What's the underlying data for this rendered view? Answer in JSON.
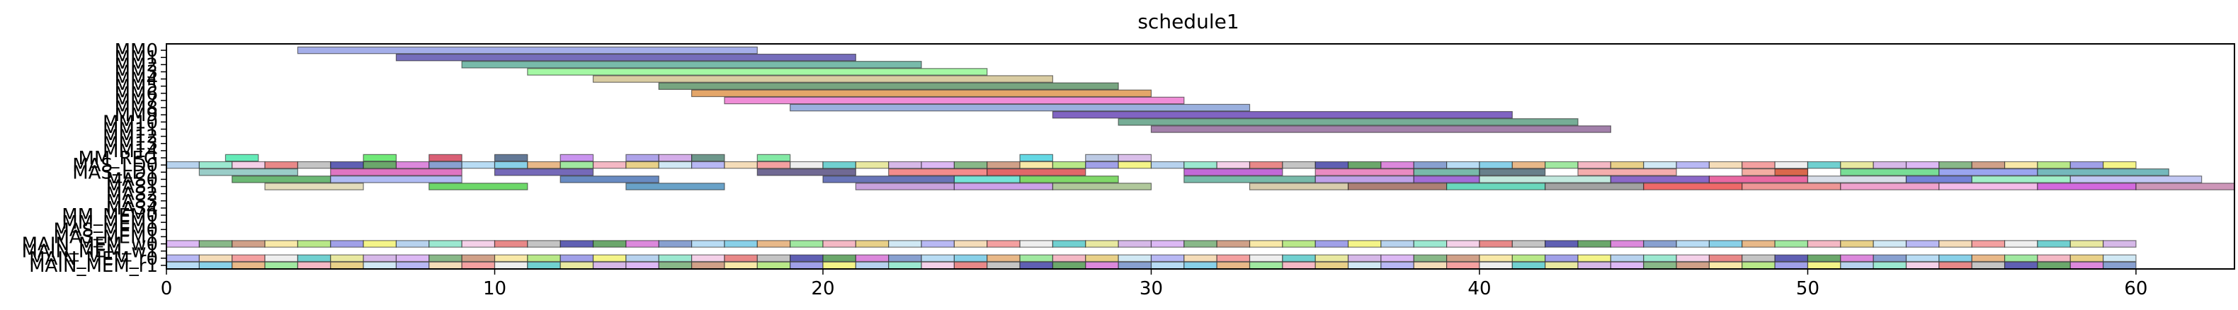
{
  "chart_data": {
    "type": "gantt",
    "title": "schedule1",
    "xlim": [
      0,
      63
    ],
    "xticks": [
      0,
      10,
      20,
      30,
      40,
      50,
      60
    ],
    "ylabels": [
      "MM0",
      "MM1",
      "MM2",
      "MM3",
      "MM4",
      "MM5",
      "MM6",
      "MM7",
      "MM8",
      "MM9",
      "MM10",
      "MM11",
      "MM12",
      "MM13",
      "MM14",
      "MM_REG",
      "MAS_LD0",
      "MAS_LD1",
      "MAS0",
      "MAS1",
      "MAS2",
      "MAS3",
      "MAS4",
      "MM_MEM0",
      "MM_MEM1",
      "MAS_MEM0",
      "MAS_MEM1",
      "MAIN_MEM_w0",
      "MAIN_MEM_w1",
      "MAIN_MEM_r0",
      "MAIN_MEM_r1"
    ],
    "tasks": [
      {
        "row": 0,
        "start": 4,
        "end": 18,
        "color": "#7d8ce0"
      },
      {
        "row": 1,
        "start": 7,
        "end": 21,
        "color": "#3a2f9e"
      },
      {
        "row": 2,
        "start": 9,
        "end": 23,
        "color": "#3f9c86"
      },
      {
        "row": 3,
        "start": 11,
        "end": 25,
        "color": "#7ef57e"
      },
      {
        "row": 4,
        "start": 13,
        "end": 27,
        "color": "#c9b77a"
      },
      {
        "row": 5,
        "start": 15,
        "end": 29,
        "color": "#3d7f4a"
      },
      {
        "row": 6,
        "start": 16,
        "end": 30,
        "color": "#d9802a"
      },
      {
        "row": 7,
        "start": 17,
        "end": 31,
        "color": "#e85cc6"
      },
      {
        "row": 8,
        "start": 19,
        "end": 33,
        "color": "#6f8fd0"
      },
      {
        "row": 9,
        "start": 27,
        "end": 41,
        "color": "#4a22a8"
      },
      {
        "row": 10,
        "start": 29,
        "end": 43,
        "color": "#3c8a6a"
      },
      {
        "row": 11,
        "start": 30,
        "end": 44,
        "color": "#7a4a86"
      },
      {
        "row": 15,
        "start": 1.8,
        "end": 2.8,
        "color": "#22e39a"
      },
      {
        "row": 15,
        "start": 6,
        "end": 7,
        "color": "#33e03f"
      },
      {
        "row": 15,
        "start": 8,
        "end": 9,
        "color": "#c91b3a"
      },
      {
        "row": 15,
        "start": 10,
        "end": 11,
        "color": "#1f3f6a"
      },
      {
        "row": 15,
        "start": 12,
        "end": 13,
        "color": "#b266e8"
      },
      {
        "row": 15,
        "start": 14,
        "end": 15,
        "color": "#8c7ce0"
      },
      {
        "row": 15,
        "start": 15,
        "end": 16,
        "color": "#c28ae0"
      },
      {
        "row": 15,
        "start": 16,
        "end": 17,
        "color": "#2f6b5a"
      },
      {
        "row": 15,
        "start": 18,
        "end": 19,
        "color": "#4ee07f"
      },
      {
        "row": 15,
        "start": 26,
        "end": 27,
        "color": "#22c7d9"
      },
      {
        "row": 15,
        "start": 28,
        "end": 29,
        "color": "#9fb3d9"
      },
      {
        "row": 15,
        "start": 29,
        "end": 30,
        "color": "#c9a2e0"
      },
      {
        "row": 17,
        "start": 1,
        "end": 4,
        "color": "#6fb8b0"
      },
      {
        "row": 17,
        "start": 5,
        "end": 9,
        "color": "#d13aa8"
      },
      {
        "row": 17,
        "start": 10,
        "end": 13,
        "color": "#3a2a9a"
      },
      {
        "row": 17,
        "start": 18,
        "end": 21,
        "color": "#332a66"
      },
      {
        "row": 17,
        "start": 22,
        "end": 25,
        "color": "#f05b5b"
      },
      {
        "row": 17,
        "start": 25,
        "end": 28,
        "color": "#d4262a"
      },
      {
        "row": 17,
        "start": 31,
        "end": 34,
        "color": "#a82ac8"
      },
      {
        "row": 17,
        "start": 35,
        "end": 38,
        "color": "#e05aa8"
      },
      {
        "row": 17,
        "start": 38,
        "end": 40,
        "color": "#3f9c86"
      },
      {
        "row": 17,
        "start": 40,
        "end": 42,
        "color": "#284a5a"
      },
      {
        "row": 17,
        "start": 43,
        "end": 46,
        "color": "#f08a8a"
      },
      {
        "row": 17,
        "start": 48,
        "end": 50,
        "color": "#ee8a7a"
      },
      {
        "row": 17,
        "start": 49,
        "end": 50,
        "color": "#cf4a28"
      },
      {
        "row": 17,
        "start": 51,
        "end": 54,
        "color": "#3fcf6a"
      },
      {
        "row": 17,
        "start": 54,
        "end": 57,
        "color": "#6f7fe8"
      },
      {
        "row": 17,
        "start": 57,
        "end": 61,
        "color": "#3a9aa0"
      },
      {
        "row": 18,
        "start": 2,
        "end": 5,
        "color": "#2d9a3a"
      },
      {
        "row": 18,
        "start": 5,
        "end": 9,
        "color": "#8fa0f0"
      },
      {
        "row": 18,
        "start": 12,
        "end": 15,
        "color": "#2a5aa8"
      },
      {
        "row": 18,
        "start": 20,
        "end": 24,
        "color": "#2a3a9a"
      },
      {
        "row": 18,
        "start": 24,
        "end": 26,
        "color": "#3ad9c8"
      },
      {
        "row": 18,
        "start": 26,
        "end": 29,
        "color": "#4ac82a"
      },
      {
        "row": 18,
        "start": 31,
        "end": 35,
        "color": "#3f9c86"
      },
      {
        "row": 18,
        "start": 35,
        "end": 38,
        "color": "#a47ae0"
      },
      {
        "row": 18,
        "start": 38,
        "end": 40,
        "color": "#7b2fc8"
      },
      {
        "row": 18,
        "start": 40,
        "end": 44,
        "color": "#a8e0d0"
      },
      {
        "row": 18,
        "start": 44,
        "end": 47,
        "color": "#5a28b0"
      },
      {
        "row": 18,
        "start": 47,
        "end": 50,
        "color": "#e02a7a"
      },
      {
        "row": 18,
        "start": 50,
        "end": 53,
        "color": "#c8d0e0"
      },
      {
        "row": 18,
        "start": 53,
        "end": 55,
        "color": "#3b4fc8"
      },
      {
        "row": 18,
        "start": 55,
        "end": 58,
        "color": "#7ae8b0"
      },
      {
        "row": 18,
        "start": 58,
        "end": 62,
        "color": "#a8b0f0"
      },
      {
        "row": 19,
        "start": 3,
        "end": 6,
        "color": "#d9cfa0"
      },
      {
        "row": 19,
        "start": 8,
        "end": 11,
        "color": "#2fc82a"
      },
      {
        "row": 19,
        "start": 14,
        "end": 17,
        "color": "#2a7ab0"
      },
      {
        "row": 19,
        "start": 21,
        "end": 24,
        "color": "#b07ad0"
      },
      {
        "row": 19,
        "start": 24,
        "end": 27,
        "color": "#b67ae0"
      },
      {
        "row": 19,
        "start": 27,
        "end": 30,
        "color": "#8fb070"
      },
      {
        "row": 19,
        "start": 33,
        "end": 36,
        "color": "#c8b88a"
      },
      {
        "row": 19,
        "start": 36,
        "end": 39,
        "color": "#8a4a3a"
      },
      {
        "row": 19,
        "start": 39,
        "end": 42,
        "color": "#2ac8a0"
      },
      {
        "row": 19,
        "start": 42,
        "end": 45,
        "color": "#7a7a7a"
      },
      {
        "row": 19,
        "start": 45,
        "end": 48,
        "color": "#e82a2a"
      },
      {
        "row": 19,
        "start": 48,
        "end": 51,
        "color": "#e86a6a"
      },
      {
        "row": 19,
        "start": 51,
        "end": 54,
        "color": "#e87ab8"
      },
      {
        "row": 19,
        "start": 54,
        "end": 57,
        "color": "#f0a0e0"
      },
      {
        "row": 19,
        "start": 57,
        "end": 60,
        "color": "#c02ad0"
      },
      {
        "row": 19,
        "start": 60,
        "end": 63,
        "color": "#b86a9a"
      }
    ],
    "dense_rows": {
      "MAS_LD0": {
        "row": 16,
        "start": 0,
        "end": 60
      },
      "MAIN_MEM_w0": {
        "row": 27,
        "start": 0,
        "end": 60
      },
      "MAIN_MEM_r0": {
        "row": 29,
        "start": 0,
        "end": 60
      },
      "MAIN_MEM_r1": {
        "row": 30,
        "start": 0,
        "end": 60
      }
    },
    "palette": [
      "#9fc3e8",
      "#f0a0b0",
      "#f5e08a",
      "#a0d0f0",
      "#c8a0e0",
      "#2a2a9a",
      "#f08080",
      "#7ae0c0",
      "#e0c060",
      "#a0e060",
      "#60c0e0",
      "#d0a0f0",
      "#3a8a3a",
      "#e8e8e8",
      "#f0c0e0",
      "#c0e0f0",
      "#8080e0",
      "#e0a060",
      "#60a060",
      "#d060d0",
      "#40c0c0",
      "#e06060",
      "#a0a0f0",
      "#f0f060",
      "#80e080",
      "#c08060",
      "#6080c0",
      "#e0e080",
      "#b0b0b0",
      "#f0d0a0"
    ]
  }
}
